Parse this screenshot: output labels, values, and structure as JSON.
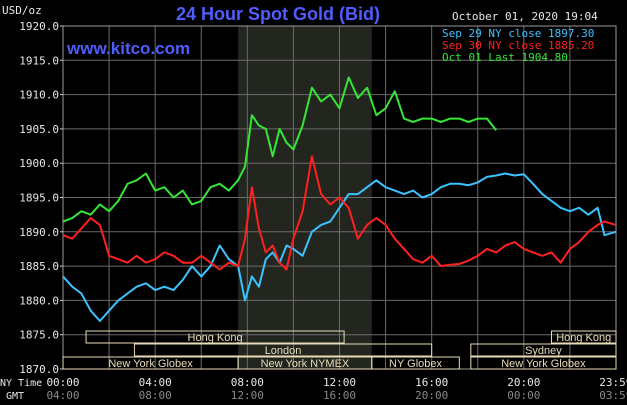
{
  "unit_label": "USD/oz",
  "title": "24 Hour Spot Gold (Bid)",
  "website": "www.kitco.com",
  "timestamp": "October 01, 2020 19:04",
  "colors": {
    "background": "#000000",
    "title": "#4f5dff",
    "website": "#4f5dff",
    "grid": "#6a6a6a",
    "axis_text": "#e8e8e8",
    "session_shade": "#22261f",
    "session_fill": "#e8dcb8",
    "sep29": "#3cc3ff",
    "sep30": "#ff2020",
    "oct01": "#36e636"
  },
  "chart_data": {
    "type": "line",
    "title": "24 Hour Spot Gold (Bid)",
    "ylabel": "USD/oz",
    "ylim": [
      1870,
      1920
    ],
    "xlim": [
      0,
      24
    ],
    "y_ticks": [
      "1870.0",
      "1875.0",
      "1880.0",
      "1885.0",
      "1890.0",
      "1895.0",
      "1900.0",
      "1905.0",
      "1910.0",
      "1915.0",
      "1920.0"
    ],
    "x_ticks": [
      "00:00",
      "04:00",
      "08:00",
      "12:00",
      "16:00",
      "20:00",
      "23:59"
    ],
    "gmt_ticks": [
      "04:00",
      "08:00",
      "12:00",
      "16:00",
      "20:00",
      "00:00",
      "03:59"
    ],
    "row_labels": [
      "NY Time",
      "GMT"
    ],
    "legend_position": "top-right",
    "legend": [
      {
        "label": "Sep 29 NY close 1897.30",
        "color": "#3cc3ff"
      },
      {
        "label": "Sep 30 NY close 1885.20",
        "color": "#ff2020"
      },
      {
        "label": "Oct 01 Last 1904.80",
        "color": "#36e636"
      }
    ],
    "grid": true,
    "highlight_range": [
      7.6,
      13.4
    ],
    "sessions": [
      {
        "label": "Hong Kong",
        "start": 1.0,
        "end": 12.2,
        "row": 0
      },
      {
        "label": "Hong Kong",
        "start": 21.2,
        "end": 24.0,
        "row": 0
      },
      {
        "label": "London",
        "start": 3.1,
        "end": 16.0,
        "row": 1
      },
      {
        "label": "Sydney",
        "start": 17.7,
        "end": 24.0,
        "row": 1
      },
      {
        "label": "New York Globex",
        "start": 0.0,
        "end": 7.6,
        "row": 2
      },
      {
        "label": "New York NYMEX",
        "start": 7.6,
        "end": 13.4,
        "row": 2
      },
      {
        "label": "NY Globex",
        "start": 13.4,
        "end": 17.2,
        "row": 2
      },
      {
        "label": "New York Globex",
        "start": 17.7,
        "end": 24.0,
        "row": 2
      }
    ],
    "series": [
      {
        "name": "Sep 29 NY close 1897.30",
        "color": "#3cc3ff",
        "x": [
          0,
          0.4,
          0.8,
          1.2,
          1.6,
          2.0,
          2.4,
          2.8,
          3.2,
          3.6,
          4.0,
          4.4,
          4.8,
          5.2,
          5.6,
          6.0,
          6.4,
          6.8,
          7.2,
          7.6,
          7.9,
          8.2,
          8.5,
          8.8,
          9.1,
          9.4,
          9.7,
          10.0,
          10.4,
          10.8,
          11.2,
          11.6,
          12.0,
          12.4,
          12.8,
          13.2,
          13.6,
          14.0,
          14.4,
          14.8,
          15.2,
          15.6,
          16.0,
          16.4,
          16.8,
          17.2,
          17.6,
          18.0,
          18.4,
          18.8,
          19.2,
          19.6,
          20.0,
          20.4,
          20.8,
          21.2,
          21.6,
          22.0,
          22.4,
          22.8,
          23.2,
          23.5,
          23.99
        ],
        "values": [
          1883.5,
          1882.0,
          1881.0,
          1878.5,
          1877.0,
          1878.5,
          1880.0,
          1881.0,
          1882.0,
          1882.5,
          1881.5,
          1882.0,
          1881.5,
          1883.0,
          1885.0,
          1883.5,
          1885.0,
          1888.0,
          1886.0,
          1885.0,
          1880.0,
          1883.5,
          1882.0,
          1886.0,
          1887.0,
          1885.5,
          1888.0,
          1887.5,
          1886.5,
          1890.0,
          1891.0,
          1891.5,
          1893.5,
          1895.5,
          1895.5,
          1896.5,
          1897.5,
          1896.5,
          1896.0,
          1895.5,
          1896.0,
          1895.0,
          1895.5,
          1896.5,
          1897.0,
          1897.0,
          1896.8,
          1897.2,
          1898.0,
          1898.2,
          1898.5,
          1898.2,
          1898.4,
          1897.0,
          1895.5,
          1894.5,
          1893.5,
          1893.0,
          1893.5,
          1892.5,
          1893.5,
          1889.5,
          1890.0
        ]
      },
      {
        "name": "Sep 30 NY close 1885.20",
        "color": "#ff2020",
        "x": [
          0,
          0.4,
          0.8,
          1.2,
          1.6,
          2.0,
          2.4,
          2.8,
          3.2,
          3.6,
          4.0,
          4.4,
          4.8,
          5.2,
          5.6,
          6.0,
          6.4,
          6.8,
          7.2,
          7.6,
          7.9,
          8.2,
          8.5,
          8.8,
          9.1,
          9.4,
          9.7,
          10.0,
          10.4,
          10.8,
          11.2,
          11.6,
          12.0,
          12.4,
          12.8,
          13.2,
          13.6,
          14.0,
          14.4,
          14.8,
          15.2,
          15.6,
          16.0,
          16.4,
          16.8,
          17.2,
          17.6,
          18.0,
          18.4,
          18.8,
          19.2,
          19.6,
          20.0,
          20.4,
          20.8,
          21.2,
          21.6,
          22.0,
          22.4,
          22.8,
          23.2,
          23.5,
          23.99
        ],
        "values": [
          1889.5,
          1889.0,
          1890.5,
          1892.0,
          1891.0,
          1886.5,
          1886.0,
          1885.5,
          1886.5,
          1885.5,
          1886.0,
          1887.0,
          1886.5,
          1885.5,
          1885.5,
          1886.5,
          1885.5,
          1884.5,
          1885.5,
          1885.0,
          1889.0,
          1896.5,
          1890.5,
          1887.0,
          1888.0,
          1885.5,
          1884.5,
          1889.0,
          1893.0,
          1901.0,
          1895.5,
          1894.0,
          1895.0,
          1893.5,
          1889.0,
          1891.0,
          1892.0,
          1891.0,
          1889.0,
          1887.5,
          1886.0,
          1885.5,
          1886.5,
          1885.0,
          1885.2,
          1885.3,
          1885.8,
          1886.5,
          1887.5,
          1887.0,
          1888.0,
          1888.5,
          1887.5,
          1887.0,
          1886.5,
          1887.0,
          1885.5,
          1887.5,
          1888.5,
          1890.0,
          1891.0,
          1891.5,
          1891.0
        ]
      },
      {
        "name": "Oct 01 Last 1904.80",
        "color": "#36e636",
        "x": [
          0,
          0.4,
          0.8,
          1.2,
          1.6,
          2.0,
          2.4,
          2.8,
          3.2,
          3.6,
          4.0,
          4.4,
          4.8,
          5.2,
          5.6,
          6.0,
          6.4,
          6.8,
          7.2,
          7.6,
          7.9,
          8.2,
          8.5,
          8.8,
          9.1,
          9.4,
          9.7,
          10.0,
          10.4,
          10.8,
          11.2,
          11.6,
          12.0,
          12.4,
          12.8,
          13.2,
          13.6,
          14.0,
          14.4,
          14.8,
          15.2,
          15.6,
          16.0,
          16.4,
          16.8,
          17.2,
          17.6,
          18.0,
          18.4,
          18.8
        ],
        "values": [
          1891.5,
          1892.0,
          1893.0,
          1892.5,
          1894.0,
          1893.0,
          1894.5,
          1897.0,
          1897.5,
          1898.5,
          1896.0,
          1896.5,
          1895.0,
          1896.0,
          1894.0,
          1894.5,
          1896.5,
          1897.0,
          1896.0,
          1897.5,
          1899.5,
          1907.0,
          1905.5,
          1905.0,
          1901.0,
          1905.0,
          1903.0,
          1902.0,
          1905.5,
          1911.0,
          1909.0,
          1910.0,
          1908.0,
          1912.5,
          1909.5,
          1911.0,
          1907.0,
          1908.0,
          1910.5,
          1906.5,
          1906.0,
          1906.5,
          1906.5,
          1906.0,
          1906.5,
          1906.5,
          1906.0,
          1906.5,
          1906.5,
          1904.8
        ]
      }
    ]
  }
}
